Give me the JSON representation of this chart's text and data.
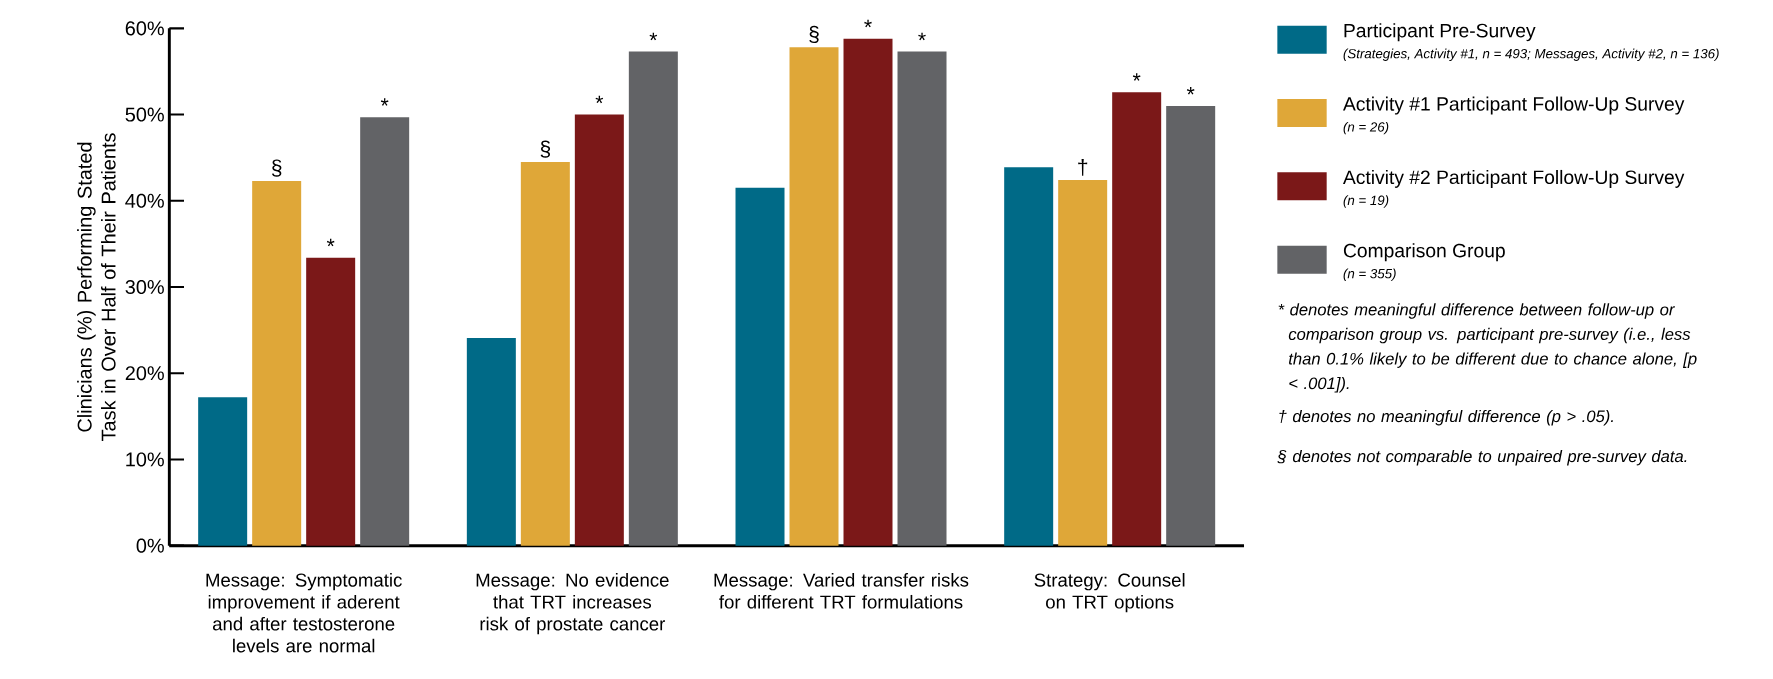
{
  "chart_data": {
    "type": "bar",
    "ylabel": "Clinicians (%) Performing Stated Task in Over Half of Their Patients",
    "categories": [
      "Message: Symptomatic improvement if aderent and after testosterone levels are normal",
      "Message: No evidence that TRT increases risk of prostate cancer",
      "Message: Varied transfer risks for different TRT formulations",
      "Strategy: Counsel on TRT options"
    ],
    "series": [
      {
        "name": "Participant Pre-Survey",
        "color": "#006a87",
        "values": [
          17.2,
          24.1,
          41.5,
          43.9
        ]
      },
      {
        "name": "Activity #1 Participant Follow-Up Survey",
        "color": "#dfa738",
        "values": [
          42.3,
          44.5,
          57.8,
          42.4
        ],
        "value_labels": [
          "§",
          "§",
          "§",
          "†"
        ]
      },
      {
        "name": "Activity #2 Participant Follow-Up Survey",
        "color": "#7b1818",
        "values": [
          33.4,
          50.0,
          58.8,
          52.6
        ],
        "value_labels": [
          "*",
          "*",
          "*",
          "*"
        ]
      },
      {
        "name": "Comparison Group",
        "color": "#626366",
        "values": [
          49.7,
          57.3,
          57.3,
          51.0
        ],
        "value_labels": [
          "*",
          "*",
          "*",
          "*"
        ]
      }
    ],
    "ylim": [
      0,
      60
    ],
    "yticks": [
      {
        "value": 0,
        "label": "0%"
      },
      {
        "value": 10,
        "label": "10%"
      },
      {
        "value": 20,
        "label": "20%"
      },
      {
        "value": 30,
        "label": "30%"
      },
      {
        "value": 40,
        "label": "40%"
      },
      {
        "value": 50,
        "label": "50%"
      },
      {
        "value": 60,
        "label": "60%"
      }
    ],
    "legend": "right",
    "grid": false,
    "annotations": [
      "(Strategies, Activity #1, n = 493; Messages, Activity #2, n = 136)",
      "(n = 26)",
      "(n = 19)",
      "(n = 355)",
      "* denotes meaningful difference between follow-up or comparison group vs. participant pre-survey (i.e., less than 0.1% likely to be different due to chance alone, [p < .001]).",
      "† denotes no meaningful difference  (p > .05).",
      "§ denotes not comparable to unpaired pre-survey data."
    ]
  }
}
